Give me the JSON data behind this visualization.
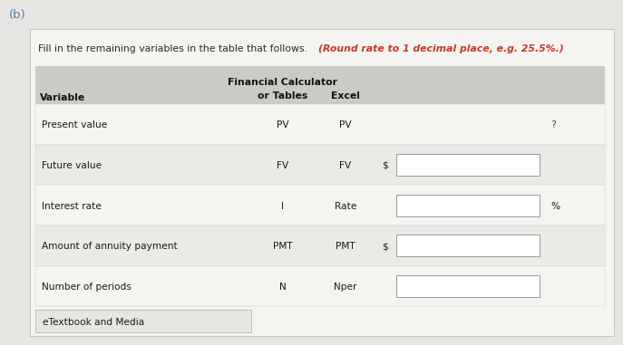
{
  "title_b": "(b)",
  "instruction_normal": "Fill in the remaining variables in the table that follows. ",
  "instruction_bold": "(Round rate to 1 decimal place, e.g. 25.5%.)",
  "bg_color": "#e8e6e3",
  "panel_bg": "#f5f4f1",
  "header_bg": "#cccac7",
  "row_bg_even": "#f5f4f1",
  "row_bg_odd": "#eceae7",
  "rows": [
    [
      "Present value",
      "PV",
      "PV",
      "",
      "?"
    ],
    [
      "Future value",
      "FV",
      "FV",
      "$",
      "box"
    ],
    [
      "Interest rate",
      "I",
      "Rate",
      "",
      "box_%"
    ],
    [
      "Amount of annuity payment",
      "PMT",
      "PMT",
      "$",
      "box"
    ],
    [
      "Number of periods",
      "N",
      "Nper",
      "",
      "box"
    ]
  ],
  "footer": "eTextbook and Media",
  "font_family": "DejaVu Sans"
}
